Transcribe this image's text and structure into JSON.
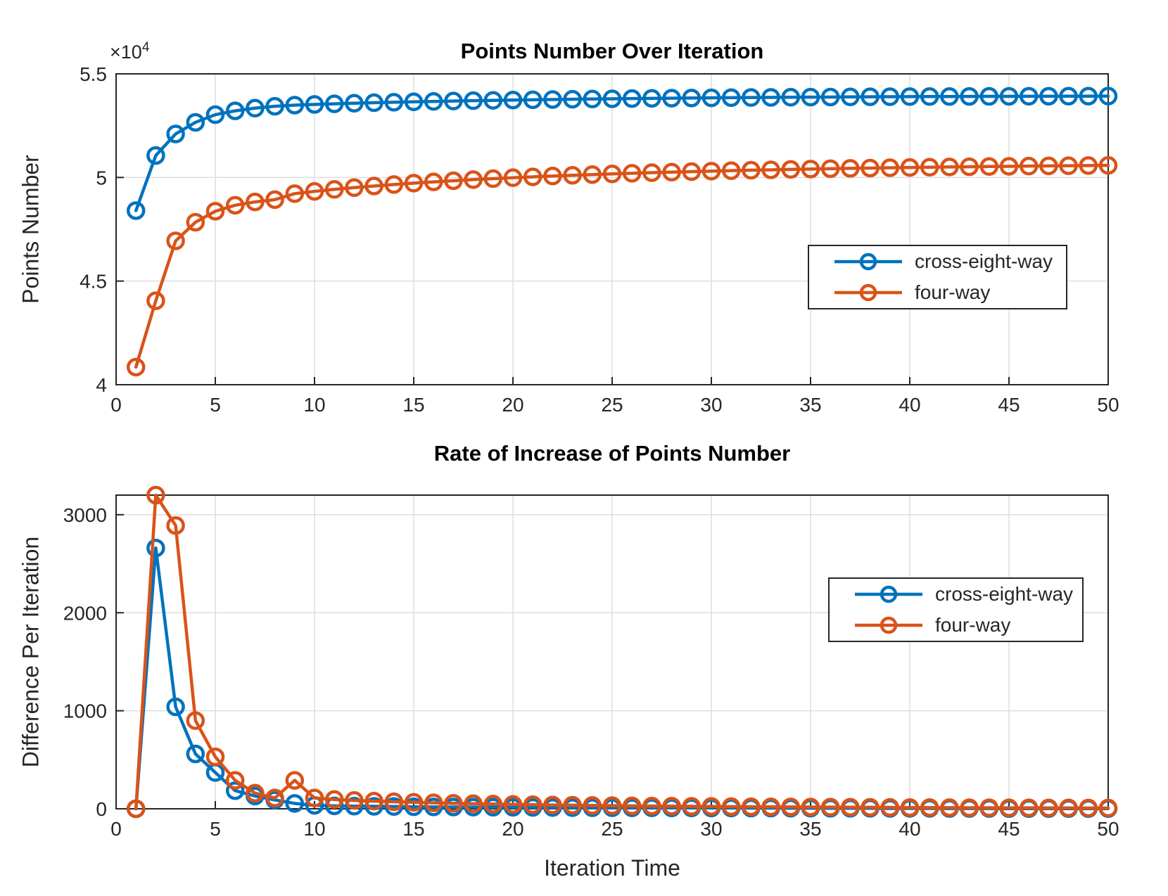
{
  "colors": {
    "series_blue": "#0072BD",
    "series_orange": "#D95319",
    "grid": "#dedede",
    "axis": "#262626",
    "title": "#000000"
  },
  "y_exponent": {
    "base": "×10",
    "power": "4"
  },
  "chart_data": [
    {
      "type": "line",
      "title": "Points Number Over Iteration",
      "xlabel": "",
      "ylabel": "Points Number",
      "xlim": [
        0,
        50
      ],
      "ylim": [
        40000,
        55000
      ],
      "grid": true,
      "legend_position": "right-middle",
      "xticks": {
        "values": [
          0,
          5,
          10,
          15,
          20,
          25,
          30,
          35,
          40,
          45,
          50
        ],
        "labels": [
          "0",
          "5",
          "10",
          "15",
          "20",
          "25",
          "30",
          "35",
          "40",
          "45",
          "50"
        ]
      },
      "yticks": {
        "values": [
          40000,
          45000,
          50000,
          55000
        ],
        "labels": [
          "4",
          "4.5",
          "5",
          "5.5"
        ]
      },
      "x": [
        1,
        2,
        3,
        4,
        5,
        6,
        7,
        8,
        9,
        10,
        11,
        12,
        13,
        14,
        15,
        16,
        17,
        18,
        19,
        20,
        21,
        22,
        23,
        24,
        25,
        26,
        27,
        28,
        29,
        30,
        31,
        32,
        33,
        34,
        35,
        36,
        37,
        38,
        39,
        40,
        41,
        42,
        43,
        44,
        45,
        46,
        47,
        48,
        49,
        50
      ],
      "series": [
        {
          "name": "cross-eight-way",
          "color": "#0072BD",
          "values": [
            48400,
            51060,
            52100,
            52660,
            53030,
            53215,
            53345,
            53435,
            53490,
            53525,
            53555,
            53582,
            53607,
            53630,
            53651,
            53670,
            53688,
            53705,
            53721,
            53736,
            53750,
            53763,
            53775,
            53786,
            53797,
            53807,
            53817,
            53826,
            53835,
            53843,
            53851,
            53858,
            53865,
            53871,
            53877,
            53882,
            53887,
            53892,
            53896,
            53900,
            53904,
            53907,
            53910,
            53913,
            53915,
            53917,
            53919,
            53921,
            53923,
            53925
          ]
        },
        {
          "name": "four-way",
          "color": "#D95319",
          "values": [
            40850,
            44050,
            46940,
            47840,
            48370,
            48660,
            48820,
            48930,
            49220,
            49330,
            49425,
            49510,
            49588,
            49660,
            49726,
            49787,
            49843,
            49895,
            49943,
            49988,
            50030,
            50069,
            50106,
            50140,
            50172,
            50202,
            50230,
            50257,
            50282,
            50306,
            50328,
            50349,
            50369,
            50388,
            50406,
            50423,
            50439,
            50454,
            50468,
            50481,
            50494,
            50506,
            50517,
            50528,
            50538,
            50548,
            50557,
            50566,
            50574,
            50582
          ]
        }
      ]
    },
    {
      "type": "line",
      "title": "Rate of Increase of Points Number",
      "xlabel": "Iteration Time",
      "ylabel": "Difference Per Iteration",
      "xlim": [
        0,
        50
      ],
      "ylim": [
        0,
        3200
      ],
      "grid": true,
      "legend_position": "right-upper",
      "xticks": {
        "values": [
          0,
          5,
          10,
          15,
          20,
          25,
          30,
          35,
          40,
          45,
          50
        ],
        "labels": [
          "0",
          "5",
          "10",
          "15",
          "20",
          "25",
          "30",
          "35",
          "40",
          "45",
          "50"
        ]
      },
      "yticks": {
        "values": [
          0,
          1000,
          2000,
          3000
        ],
        "labels": [
          "0",
          "1000",
          "2000",
          "3000"
        ]
      },
      "x": [
        1,
        2,
        3,
        4,
        5,
        6,
        7,
        8,
        9,
        10,
        11,
        12,
        13,
        14,
        15,
        16,
        17,
        18,
        19,
        20,
        21,
        22,
        23,
        24,
        25,
        26,
        27,
        28,
        29,
        30,
        31,
        32,
        33,
        34,
        35,
        36,
        37,
        38,
        39,
        40,
        41,
        42,
        43,
        44,
        45,
        46,
        47,
        48,
        49,
        50
      ],
      "series": [
        {
          "name": "cross-eight-way",
          "color": "#0072BD",
          "values": [
            0,
            2660,
            1040,
            560,
            370,
            185,
            130,
            90,
            55,
            35,
            30,
            27,
            25,
            23,
            21,
            19,
            18,
            17,
            16,
            15,
            14,
            13,
            12,
            11,
            11,
            10,
            10,
            9,
            9,
            8,
            8,
            7,
            7,
            6,
            6,
            5,
            5,
            5,
            4,
            4,
            4,
            3,
            3,
            3,
            2,
            2,
            2,
            2,
            2,
            2
          ]
        },
        {
          "name": "four-way",
          "color": "#D95319",
          "values": [
            0,
            3200,
            2890,
            900,
            530,
            290,
            160,
            110,
            290,
            110,
            95,
            85,
            78,
            72,
            66,
            61,
            56,
            52,
            48,
            45,
            42,
            39,
            37,
            34,
            32,
            30,
            28,
            27,
            25,
            24,
            22,
            21,
            20,
            19,
            18,
            17,
            16,
            15,
            14,
            13,
            13,
            12,
            11,
            11,
            10,
            10,
            9,
            9,
            8,
            8
          ]
        }
      ]
    }
  ]
}
